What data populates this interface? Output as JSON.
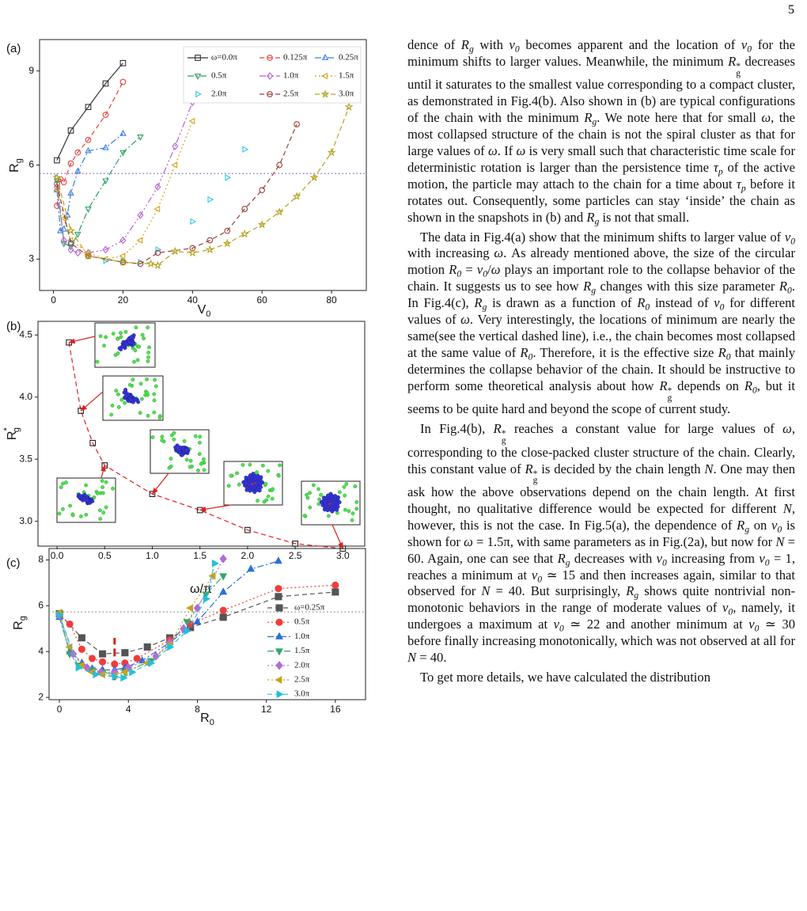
{
  "page_number": "5",
  "chart_data": [
    {
      "type": "line",
      "panel": "(a)",
      "xlabel": {
        "text": "V",
        "sub": "0"
      },
      "ylabel": {
        "text": "R",
        "sub": "g"
      },
      "xlim": [
        -4,
        90
      ],
      "ylim": [
        2,
        10
      ],
      "xticks": [
        0,
        20,
        40,
        60,
        80
      ],
      "yticks": [
        3,
        6,
        9
      ],
      "filled": false,
      "legend": "top-right",
      "hline": 5.73,
      "hline_color": "#7050c8",
      "series": [
        {
          "name": "ω=0.0π",
          "color": "#333333",
          "marker": "square",
          "dash": "solid",
          "x": [
            1,
            5,
            10,
            15,
            20
          ],
          "values": [
            6.15,
            7.1,
            7.85,
            8.6,
            9.25
          ]
        },
        {
          "name": "0.125π",
          "color": "#e8413a",
          "marker": "circle",
          "dash": "dashed",
          "x": [
            1,
            2,
            3,
            5,
            7,
            10,
            15,
            20
          ],
          "values": [
            4.7,
            5.55,
            5.45,
            6.05,
            6.4,
            6.8,
            7.6,
            8.65
          ]
        },
        {
          "name": "0.25π",
          "color": "#3a7ee0",
          "marker": "triangle-up",
          "dash": "dashdot",
          "x": [
            1,
            2,
            3,
            4,
            5,
            7,
            10,
            15,
            20
          ],
          "values": [
            5.2,
            3.9,
            3.95,
            4.4,
            5.1,
            5.8,
            6.45,
            6.55,
            7.0
          ]
        },
        {
          "name": "0.5π",
          "color": "#2e9e60",
          "marker": "triangle-down",
          "dash": "dashdot",
          "x": [
            1,
            3,
            5,
            7,
            10,
            15,
            20,
            25
          ],
          "values": [
            5.5,
            3.5,
            3.4,
            3.8,
            4.6,
            5.5,
            6.4,
            6.9
          ]
        },
        {
          "name": "1.0π",
          "color": "#b562d6",
          "marker": "diamond",
          "dash": "dashdotdot",
          "x": [
            1,
            3,
            5,
            7,
            10,
            15,
            20,
            25,
            30,
            35,
            40
          ],
          "values": [
            5.3,
            3.6,
            3.3,
            3.2,
            3.2,
            3.3,
            3.6,
            4.4,
            5.3,
            6.6,
            8.0
          ]
        },
        {
          "name": "1.5π",
          "color": "#d9a520",
          "marker": "triangle-left",
          "dash": "dotted",
          "x": [
            1,
            3,
            5,
            10,
            15,
            20,
            25,
            30,
            35,
            40
          ],
          "values": [
            5.2,
            4.3,
            3.6,
            3.2,
            3.0,
            3.1,
            3.6,
            4.6,
            6.0,
            7.4
          ]
        },
        {
          "name": "2.0π",
          "color": "#2ec4e6",
          "marker": "triangle-right",
          "dash": "none",
          "x": [
            1,
            5,
            10,
            15,
            20,
            25,
            30,
            40,
            45,
            50,
            55,
            60
          ],
          "values": [
            5.6,
            3.5,
            3.1,
            2.95,
            2.95,
            2.9,
            3.3,
            4.2,
            4.9,
            5.6,
            6.5,
            8.1
          ]
        },
        {
          "name": "2.5π",
          "color": "#9a3c3c",
          "marker": "circle",
          "dash": "dashed",
          "x": [
            1,
            5,
            10,
            20,
            25,
            30,
            40,
            45,
            50,
            55,
            60,
            65,
            70
          ],
          "values": [
            5.4,
            3.5,
            3.1,
            2.9,
            2.85,
            3.2,
            3.35,
            3.6,
            3.9,
            4.6,
            5.2,
            6.0,
            7.3
          ]
        },
        {
          "name": "3.0π",
          "color": "#b5a21e",
          "marker": "star",
          "dash": "dashed",
          "x": [
            1,
            5,
            10,
            20,
            28,
            30,
            35,
            40,
            45,
            50,
            55,
            60,
            65,
            70,
            75,
            80,
            85
          ],
          "values": [
            5.6,
            3.9,
            3.1,
            2.9,
            2.85,
            2.8,
            3.25,
            3.2,
            3.3,
            3.5,
            3.8,
            4.1,
            4.5,
            5.0,
            5.6,
            6.4,
            7.85
          ]
        }
      ]
    },
    {
      "type": "line",
      "panel": "(b)",
      "xlabel": {
        "text": "ω/π"
      },
      "ylabel": {
        "text": "R",
        "sub": "g",
        "sup": "*"
      },
      "xlim": [
        -0.2,
        3.23
      ],
      "ylim": [
        2.8,
        4.61
      ],
      "xticks": [
        {
          "value": 0,
          "label": "0.0"
        },
        0.5,
        {
          "value": 1,
          "label": "1.0"
        },
        1.5,
        {
          "value": 2,
          "label": "2.0"
        },
        2.5,
        {
          "value": 3,
          "label": "3.0"
        }
      ],
      "yticks": [
        {
          "value": 3,
          "label": "3.0"
        },
        3.5,
        {
          "value": 4,
          "label": "4.0"
        },
        4.5
      ],
      "filled": false,
      "series": [
        {
          "color": "#222222",
          "line_color": "#e02020",
          "marker": "square",
          "dash": "dashed",
          "x": [
            0.125,
            0.25,
            0.375,
            0.5,
            1.0,
            1.5,
            2.0,
            2.5,
            3.0
          ],
          "values": [
            4.44,
            3.89,
            3.63,
            3.45,
            3.22,
            3.09,
            2.93,
            2.82,
            2.78
          ]
        }
      ]
    },
    {
      "type": "line",
      "panel": "(c)",
      "xlabel": {
        "text": "R",
        "sub": "0"
      },
      "ylabel": {
        "text": "R",
        "sub": "g"
      },
      "xlim": [
        -0.6,
        17.75
      ],
      "ylim": [
        1.9,
        8.5
      ],
      "xticks": [
        0,
        4,
        8,
        12,
        16
      ],
      "yticks": [
        2,
        4,
        6,
        8
      ],
      "filled": true,
      "legend": "right",
      "hline": 5.73,
      "hline_color": "#888888",
      "vline": {
        "x": 3.2,
        "from": 2.75,
        "to": 4.6,
        "color": "#e02020"
      },
      "series": [
        {
          "name": "ω=0.25π",
          "color": "#555555",
          "marker": "square",
          "dash": "dashed",
          "x": [
            0,
            1.3,
            2.5,
            3.8,
            5.1,
            6.4,
            7.6,
            9.5,
            12.7,
            16
          ],
          "values": [
            5.65,
            4.6,
            3.9,
            3.95,
            4.2,
            4.6,
            5.05,
            5.5,
            6.4,
            6.6
          ]
        },
        {
          "name": "0.5π",
          "color": "#f03c3c",
          "marker": "circle",
          "dash": "dotted",
          "x": [
            0,
            0.6,
            1.3,
            1.9,
            2.5,
            3.2,
            3.8,
            4.5,
            6.4,
            7.6,
            9.5,
            12.7,
            16
          ],
          "values": [
            5.6,
            5.2,
            4.1,
            3.7,
            3.55,
            3.45,
            3.5,
            3.7,
            4.5,
            5.2,
            5.8,
            6.75,
            6.9
          ]
        },
        {
          "name": "1.0π",
          "color": "#2b6fd6",
          "marker": "triangle-up",
          "dash": "dashdot",
          "x": [
            0,
            0.6,
            1.3,
            1.9,
            2.5,
            3.2,
            3.8,
            4.8,
            6.4,
            8,
            9.5,
            11.1,
            12.7
          ],
          "values": [
            5.5,
            4.0,
            3.5,
            3.25,
            3.2,
            3.2,
            3.3,
            3.6,
            4.4,
            5.3,
            6.6,
            7.6,
            7.95
          ]
        },
        {
          "name": "1.5π",
          "color": "#2fa86a",
          "marker": "triangle-down",
          "dash": "dashdotdot",
          "x": [
            0,
            0.6,
            1.1,
            1.9,
            2.5,
            3.2,
            3.8,
            5.3,
            6.4,
            7.4,
            8.5,
            9.5
          ],
          "values": [
            5.6,
            3.9,
            3.4,
            3.2,
            3.1,
            3.0,
            3.1,
            3.6,
            4.3,
            5.3,
            6.5,
            7.3
          ]
        },
        {
          "name": "2.0π",
          "color": "#b36ad9",
          "marker": "diamond",
          "dash": "dotted",
          "x": [
            0,
            0.8,
            1.6,
            2.4,
            3.2,
            4.0,
            5.6,
            6.4,
            7.2,
            8,
            9.5
          ],
          "values": [
            5.6,
            3.9,
            3.3,
            3.1,
            3.1,
            3.3,
            3.8,
            4.4,
            5.0,
            5.9,
            8.05
          ]
        },
        {
          "name": "2.5π",
          "color": "#c9a218",
          "marker": "triangle-left",
          "dash": "dotted",
          "x": [
            0,
            0.6,
            1.3,
            1.9,
            2.5,
            3.2,
            3.8,
            5.1,
            6.4,
            7.6,
            8.9
          ],
          "values": [
            5.7,
            4.2,
            3.4,
            3.1,
            3.0,
            2.95,
            3.1,
            3.5,
            4.3,
            5.9,
            7.3
          ]
        },
        {
          "name": "3.0π",
          "color": "#22c0dd",
          "marker": "triangle-right",
          "dash": "dashed",
          "x": [
            0,
            1.1,
            2.1,
            3.2,
            3.7,
            4.2,
            5.3,
            6.4,
            7.4,
            8.5,
            9.0
          ],
          "values": [
            5.6,
            3.3,
            3.0,
            2.9,
            2.85,
            3.1,
            3.5,
            4.2,
            4.9,
            6.3,
            7.85
          ]
        }
      ]
    }
  ],
  "paragraphs": [
    [
      "dence of ",
      {
        "m": "R",
        "sub": "g"
      },
      " with ",
      {
        "m": "v",
        "sub": "0"
      },
      " becomes apparent and the location of ",
      {
        "m": "v",
        "sub": "0"
      },
      " for the minimum shifts to larger values. Meanwhile, the minimum ",
      {
        "m": "R",
        "sub": "g",
        "sup": "*"
      },
      " decreases until it saturates to the smallest value corresponding to a compact cluster, as demonstrated in Fig.4(b). Also shown in (b) are typical configurations of the chain with the minimum ",
      {
        "m": "R",
        "sub": "g"
      },
      ". We note here that for small ",
      {
        "m": "ω"
      },
      ", the most collapsed structure of the chain is not the spiral cluster as that for large values of ",
      {
        "m": "ω"
      },
      ". If ",
      {
        "m": "ω"
      },
      " is very small such that characteristic time scale for deterministic rotation is larger than the persistence time ",
      {
        "m": "τ",
        "sub": "p"
      },
      " of the active motion, the particle may attach to the chain for a time about ",
      {
        "m": "τ",
        "sub": "p"
      },
      " before it rotates out. Consequently, some particles can stay ‘inside’ the chain as shown in the snapshots in (b) and ",
      {
        "m": "R",
        "sub": "g"
      },
      " is not that small."
    ],
    [
      "The data in Fig.4(a) show that the minimum shifts to larger value of ",
      {
        "m": "v",
        "sub": "0"
      },
      " with increasing ",
      {
        "m": "ω"
      },
      ". As already mentioned above, the size of the circular motion ",
      {
        "m": "R",
        "sub": "0"
      },
      " = ",
      {
        "m": "v",
        "sub": "0"
      },
      "/",
      {
        "m": "ω"
      },
      " plays an important role to the collapse behavior of the chain. It suggests us to see how ",
      {
        "m": "R",
        "sub": "g"
      },
      " changes with this size parameter ",
      {
        "m": "R",
        "sub": "0"
      },
      ". In Fig.4(c), ",
      {
        "m": "R",
        "sub": "g"
      },
      " is drawn as a function of ",
      {
        "m": "R",
        "sub": "0"
      },
      " instead of ",
      {
        "m": "v",
        "sub": "0"
      },
      " for different values of ",
      {
        "m": "ω"
      },
      ". Very interestingly, the locations of minimum are nearly the same(see the vertical dashed line), i.e., the chain becomes most collapsed at the same value of ",
      {
        "m": "R",
        "sub": "0"
      },
      ". Therefore, it is the effective size ",
      {
        "m": "R",
        "sub": "0"
      },
      " that mainly determines the collapse behavior of the chain. It should be instructive to perform some theoretical analysis about how ",
      {
        "m": "R",
        "sub": "g",
        "sup": "*"
      },
      " depends on ",
      {
        "m": "R",
        "sub": "0"
      },
      ", but it seems to be quite hard and beyond the scope of current study."
    ],
    [
      "In Fig.4(b), ",
      {
        "m": "R",
        "sub": "g",
        "sup": "*"
      },
      " reaches a constant value for large values of ",
      {
        "m": "ω"
      },
      ", corresponding to the close-packed cluster structure of the chain. Clearly, this constant value of ",
      {
        "m": "R",
        "sub": "g",
        "sup": "*"
      },
      " is decided by the chain length ",
      {
        "m": "N"
      },
      ". One may then ask how the above observations depend on the chain length. At first thought, no qualitative difference would be expected for different ",
      {
        "m": "N"
      },
      ", however, this is not the case. In Fig.5(a), the dependence of ",
      {
        "m": "R",
        "sub": "g"
      },
      " on ",
      {
        "m": "v",
        "sub": "0"
      },
      " is shown for ",
      {
        "m": "ω"
      },
      " = 1.5π, with same parameters as in Fig.(2a), but now for ",
      {
        "m": "N"
      },
      " = 60. Again, one can see that ",
      {
        "m": "R",
        "sub": "g"
      },
      " decreases with ",
      {
        "m": "v",
        "sub": "0"
      },
      " increasing from ",
      {
        "m": "v",
        "sub": "0"
      },
      " = 1, reaches a minimum at ",
      {
        "m": "v",
        "sub": "0"
      },
      " ≃ 15 and then increases again, similar to that observed for ",
      {
        "m": "N"
      },
      " = 40. But surprisingly, ",
      {
        "m": "R",
        "sub": "g"
      },
      " shows quite nontrivial non-monotonic behaviors in the range of moderate values of ",
      {
        "m": "v",
        "sub": "0"
      },
      ", namely, it undergoes a maximum at ",
      {
        "m": "v",
        "sub": "0"
      },
      " ≃ 22 and another minimum at ",
      {
        "m": "v",
        "sub": "0"
      },
      " ≃ 30 before finally increasing monotonically, which was not observed at all for ",
      {
        "m": "N"
      },
      " = 40."
    ],
    [
      "To get more details, we have calculated the distribution"
    ]
  ]
}
